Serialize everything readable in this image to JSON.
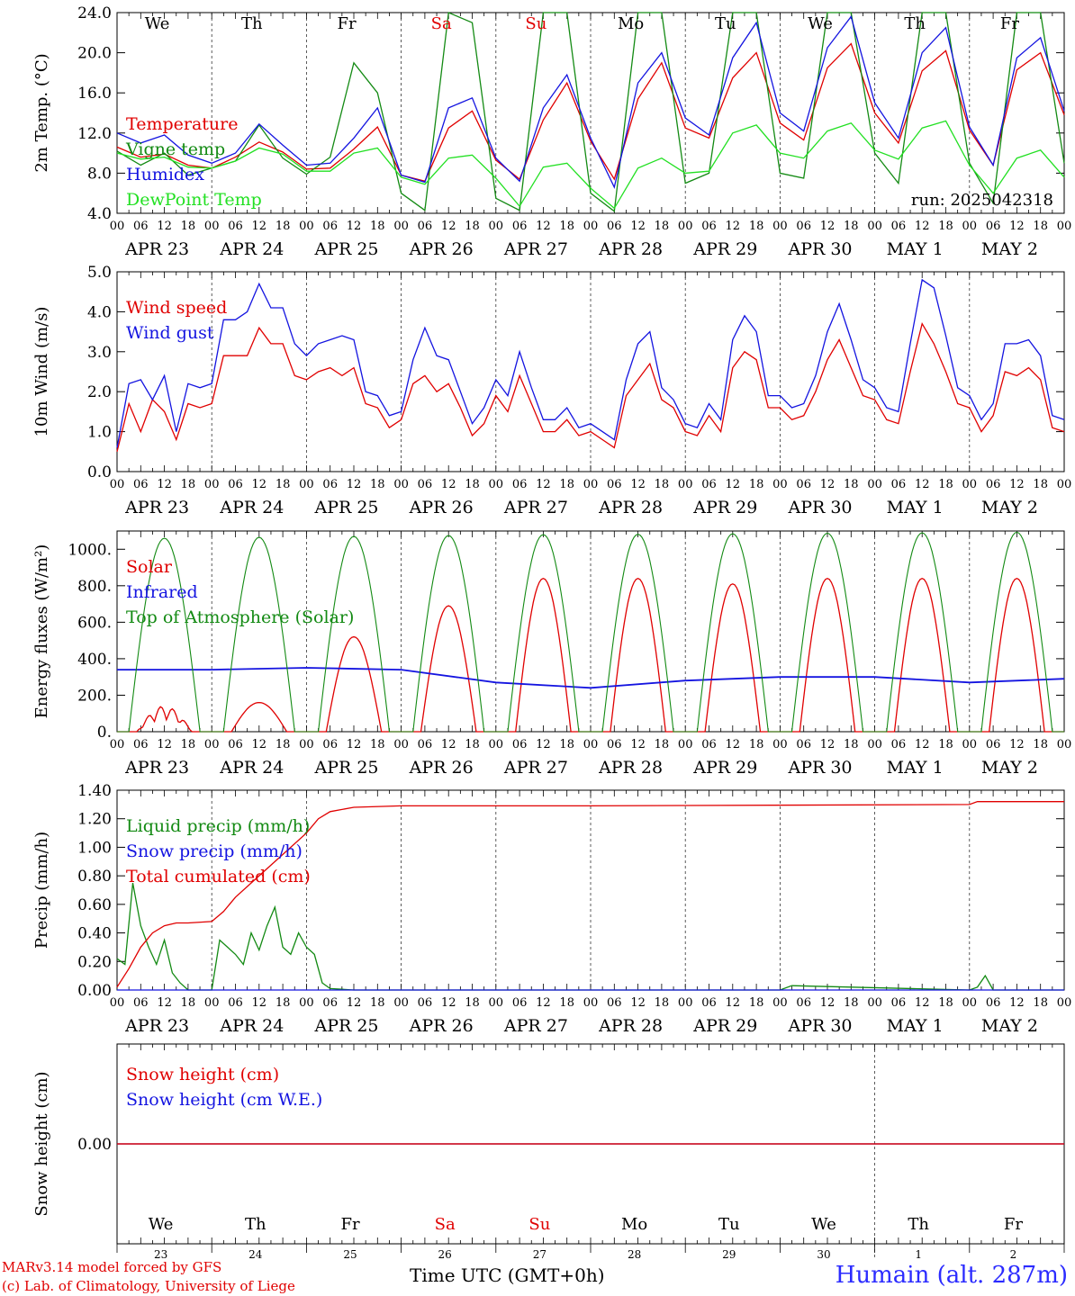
{
  "run_label": "run: 2025042318",
  "day_names": [
    "We",
    "Th",
    "Fr",
    "Sa",
    "Su",
    "Mo",
    "Tu",
    "We",
    "Th",
    "Fr"
  ],
  "day_name_colors": [
    "#000000",
    "#000000",
    "#000000",
    "#e00000",
    "#e00000",
    "#000000",
    "#000000",
    "#000000",
    "#000000",
    "#000000"
  ],
  "date_labels": [
    "APR 23",
    "APR 24",
    "APR 25",
    "APR 26",
    "APR 27",
    "APR 28",
    "APR 29",
    "APR 30",
    "MAY  1",
    "MAY  2"
  ],
  "hour_ticks": [
    "00",
    "06",
    "12",
    "18"
  ],
  "final_hour_tick": "00",
  "day_numbers": [
    "23",
    "24",
    "25",
    "26",
    "27",
    "28",
    "29",
    "30",
    "1",
    "2"
  ],
  "footer": {
    "model": "MARv3.14 model forced by GFS",
    "lab": "(c) Lab. of Climatology, University of Liege",
    "axis_title": "Time UTC (GMT+0h)",
    "station": "Humain (alt. 287m)"
  },
  "colors": {
    "red": "#e00000",
    "green": "#138a13",
    "blue": "#1414e0",
    "light_green": "#22e022"
  },
  "chart_data": [
    {
      "type": "line",
      "ylabel": "2m Temp. (°C)",
      "ylim": [
        4,
        24
      ],
      "yticks": [
        "4.0",
        "8.0",
        "12.0",
        "16.0",
        "20.0",
        "24.0"
      ],
      "x_unit": "hours since 2025-04-23 00 UTC",
      "grid": "dashed vertical lines at each day",
      "series": [
        {
          "name": "Temperature",
          "color": "red",
          "x": [
            0,
            6,
            12,
            18,
            24,
            30,
            36,
            42,
            48,
            54,
            60,
            66,
            72,
            78,
            84,
            90,
            96,
            102,
            108,
            114,
            120,
            126,
            132,
            138,
            144,
            150,
            156,
            162,
            168,
            174,
            180,
            186,
            192,
            198,
            204,
            210,
            216,
            222,
            228,
            234,
            240
          ],
          "values": [
            10.6,
            9.6,
            9.9,
            8.8,
            8.5,
            9.6,
            11.1,
            10.1,
            8.4,
            8.5,
            10.4,
            12.6,
            7.8,
            7.2,
            12.5,
            14.2,
            9.3,
            7.4,
            13.3,
            17.0,
            11.2,
            7.4,
            15.4,
            19.0,
            12.5,
            11.5,
            17.5,
            20.0,
            13.0,
            11.3,
            18.5,
            20.9,
            14.0,
            11.0,
            18.2,
            20.2,
            12.3,
            8.8,
            18.3,
            20.0,
            13.8
          ]
        },
        {
          "name": "Vigne temp",
          "color": "green",
          "x": [
            0,
            6,
            12,
            18,
            24,
            30,
            36,
            42,
            48,
            54,
            60,
            66,
            72,
            78,
            84,
            90,
            96,
            102,
            108,
            114,
            120,
            126,
            132,
            138,
            144,
            150,
            156,
            162,
            168,
            174,
            180,
            186,
            192,
            198,
            204,
            210,
            216,
            222,
            228,
            234,
            240
          ],
          "values": [
            10.2,
            8.8,
            10.0,
            7.8,
            8.5,
            9.2,
            12.8,
            9.5,
            7.9,
            9.6,
            19.0,
            16.0,
            6.0,
            4.3,
            24.0,
            23.0,
            5.5,
            4.3,
            24.0,
            24.0,
            6.0,
            4.2,
            24.0,
            24.0,
            7.0,
            8.0,
            24.0,
            24.0,
            8.0,
            7.5,
            24.0,
            24.0,
            10.0,
            7.0,
            24.0,
            24.0,
            9.0,
            5.0,
            24.0,
            24.0,
            9.0
          ]
        },
        {
          "name": "Humidex",
          "color": "blue",
          "x": [
            0,
            6,
            12,
            18,
            24,
            30,
            36,
            42,
            48,
            54,
            60,
            66,
            72,
            78,
            84,
            90,
            96,
            102,
            108,
            114,
            120,
            126,
            132,
            138,
            144,
            150,
            156,
            162,
            168,
            174,
            180,
            186,
            192,
            198,
            204,
            210,
            216,
            222,
            228,
            234,
            240
          ],
          "values": [
            12.0,
            11.0,
            11.8,
            9.8,
            9.0,
            10.0,
            12.9,
            10.8,
            8.8,
            9.0,
            11.5,
            14.5,
            7.8,
            7.1,
            14.5,
            15.5,
            9.5,
            7.2,
            14.5,
            17.8,
            11.5,
            6.6,
            17.0,
            20.0,
            13.5,
            11.8,
            19.5,
            23.0,
            14.0,
            12.2,
            20.5,
            23.6,
            15.0,
            11.5,
            20.0,
            22.5,
            12.6,
            8.8,
            19.5,
            21.5,
            14.2
          ]
        },
        {
          "name": "DewPoint Temp",
          "color": "light_green",
          "x": [
            0,
            6,
            12,
            18,
            24,
            30,
            36,
            42,
            48,
            54,
            60,
            66,
            72,
            78,
            84,
            90,
            96,
            102,
            108,
            114,
            120,
            126,
            132,
            138,
            144,
            150,
            156,
            162,
            168,
            174,
            180,
            186,
            192,
            198,
            204,
            210,
            216,
            222,
            228,
            234,
            240
          ],
          "values": [
            10.0,
            9.4,
            9.6,
            8.6,
            8.5,
            9.2,
            10.5,
            9.9,
            8.2,
            8.2,
            10.0,
            10.5,
            7.6,
            6.9,
            9.5,
            9.8,
            7.5,
            4.7,
            8.6,
            9.0,
            6.5,
            4.5,
            8.5,
            9.5,
            8.0,
            8.2,
            12.0,
            12.8,
            10.0,
            9.5,
            12.2,
            13.0,
            10.3,
            9.4,
            12.5,
            13.2,
            8.8,
            6.0,
            9.5,
            10.3,
            7.6
          ]
        }
      ]
    },
    {
      "type": "line",
      "ylabel": "10m Wind (m/s)",
      "ylim": [
        0,
        5
      ],
      "yticks": [
        "0.0",
        "1.0",
        "2.0",
        "3.0",
        "4.0",
        "5.0"
      ],
      "series": [
        {
          "name": "Wind speed",
          "color": "red",
          "x": [
            0,
            3,
            6,
            9,
            12,
            15,
            18,
            21,
            24,
            27,
            30,
            33,
            36,
            39,
            42,
            45,
            48,
            51,
            54,
            57,
            60,
            63,
            66,
            69,
            72,
            75,
            78,
            81,
            84,
            87,
            90,
            93,
            96,
            99,
            102,
            105,
            108,
            111,
            114,
            117,
            120,
            123,
            126,
            129,
            132,
            135,
            138,
            141,
            144,
            147,
            150,
            153,
            156,
            159,
            162,
            165,
            168,
            171,
            174,
            177,
            180,
            183,
            186,
            189,
            192,
            195,
            198,
            201,
            204,
            207,
            210,
            213,
            216,
            219,
            222,
            225,
            228,
            231,
            234,
            237,
            240
          ],
          "values": [
            0.5,
            1.7,
            1.0,
            1.8,
            1.5,
            0.8,
            1.7,
            1.6,
            1.7,
            2.9,
            2.9,
            2.9,
            3.6,
            3.2,
            3.2,
            2.4,
            2.3,
            2.5,
            2.6,
            2.4,
            2.6,
            1.7,
            1.6,
            1.1,
            1.3,
            2.2,
            2.4,
            2.0,
            2.2,
            1.6,
            0.9,
            1.2,
            1.9,
            1.5,
            2.4,
            1.7,
            1.0,
            1.0,
            1.3,
            0.9,
            1.0,
            0.8,
            0.6,
            1.9,
            2.3,
            2.7,
            1.8,
            1.6,
            1.0,
            0.9,
            1.4,
            1.0,
            2.6,
            3.0,
            2.8,
            1.6,
            1.6,
            1.3,
            1.4,
            2.0,
            2.8,
            3.3,
            2.6,
            1.9,
            1.8,
            1.3,
            1.2,
            2.5,
            3.7,
            3.2,
            2.5,
            1.7,
            1.6,
            1.0,
            1.4,
            2.5,
            2.4,
            2.6,
            2.3,
            1.1,
            1.0
          ]
        },
        {
          "name": "Wind gust",
          "color": "blue",
          "x": [
            0,
            3,
            6,
            9,
            12,
            15,
            18,
            21,
            24,
            27,
            30,
            33,
            36,
            39,
            42,
            45,
            48,
            51,
            54,
            57,
            60,
            63,
            66,
            69,
            72,
            75,
            78,
            81,
            84,
            87,
            90,
            93,
            96,
            99,
            102,
            105,
            108,
            111,
            114,
            117,
            120,
            123,
            126,
            129,
            132,
            135,
            138,
            141,
            144,
            147,
            150,
            153,
            156,
            159,
            162,
            165,
            168,
            171,
            174,
            177,
            180,
            183,
            186,
            189,
            192,
            195,
            198,
            201,
            204,
            207,
            210,
            213,
            216,
            219,
            222,
            225,
            228,
            231,
            234,
            237,
            240
          ],
          "values": [
            0.6,
            2.2,
            2.3,
            1.8,
            2.4,
            1.0,
            2.2,
            2.1,
            2.2,
            3.8,
            3.8,
            4.0,
            4.7,
            4.1,
            4.1,
            3.2,
            2.9,
            3.2,
            3.3,
            3.4,
            3.3,
            2.0,
            1.9,
            1.4,
            1.5,
            2.8,
            3.6,
            2.9,
            2.8,
            2.0,
            1.2,
            1.6,
            2.3,
            1.9,
            3.0,
            2.1,
            1.3,
            1.3,
            1.6,
            1.1,
            1.2,
            1.0,
            0.8,
            2.3,
            3.2,
            3.5,
            2.1,
            1.8,
            1.2,
            1.1,
            1.7,
            1.3,
            3.3,
            3.9,
            3.5,
            1.9,
            1.9,
            1.6,
            1.7,
            2.4,
            3.5,
            4.2,
            3.3,
            2.3,
            2.1,
            1.6,
            1.5,
            3.2,
            4.8,
            4.6,
            3.4,
            2.1,
            1.9,
            1.3,
            1.7,
            3.2,
            3.2,
            3.3,
            2.9,
            1.4,
            1.3
          ]
        }
      ]
    },
    {
      "type": "line",
      "ylabel": "Energy fluxes (W/m²)",
      "ylim": [
        0,
        1100
      ],
      "yticks": [
        "0.",
        "200.",
        "400.",
        "600.",
        "800.",
        "1000."
      ],
      "series": [
        {
          "name": "Solar",
          "color": "red",
          "peaks": [
            140,
            160,
            520,
            690,
            840,
            840,
            810,
            840,
            840,
            840
          ],
          "x": [
            0,
            6,
            8,
            10,
            12,
            14,
            16,
            18,
            20,
            24
          ],
          "values_day1": [
            0,
            0,
            100,
            60,
            130,
            80,
            140,
            0,
            0,
            0
          ]
        },
        {
          "name": "Infrared",
          "color": "blue",
          "x": [
            0,
            24,
            48,
            72,
            96,
            120,
            144,
            168,
            192,
            216,
            240
          ],
          "values": [
            340,
            340,
            350,
            340,
            270,
            240,
            280,
            300,
            300,
            270,
            290
          ]
        },
        {
          "name": "Top of Atmosphere (Solar)",
          "color": "green",
          "peaks": [
            1060,
            1065,
            1070,
            1075,
            1080,
            1082,
            1085,
            1088,
            1090,
            1093
          ]
        }
      ]
    },
    {
      "type": "line",
      "ylabel": "Precip (mm/h)",
      "ylim": [
        0,
        1.4
      ],
      "yticks": [
        "0.00",
        "0.20",
        "0.40",
        "0.60",
        "0.80",
        "1.00",
        "1.20",
        "1.40"
      ],
      "series": [
        {
          "name": "Liquid precip (mm/h)",
          "color": "green",
          "x": [
            0,
            2,
            4,
            6,
            8,
            10,
            12,
            14,
            16,
            18,
            24,
            26,
            28,
            30,
            32,
            34,
            36,
            38,
            40,
            42,
            44,
            46,
            48,
            50,
            52,
            54,
            60,
            168,
            171,
            216,
            218,
            220,
            222,
            240
          ],
          "values": [
            0.22,
            0.18,
            0.75,
            0.45,
            0.3,
            0.18,
            0.35,
            0.12,
            0.05,
            0.0,
            0.0,
            0.35,
            0.3,
            0.25,
            0.18,
            0.4,
            0.28,
            0.45,
            0.58,
            0.3,
            0.25,
            0.4,
            0.3,
            0.25,
            0.05,
            0.01,
            0.0,
            0.0,
            0.03,
            0.0,
            0.02,
            0.1,
            0.0,
            0.0
          ]
        },
        {
          "name": "Snow precip (mm/h)",
          "color": "blue",
          "x": [
            0,
            240
          ],
          "values": [
            0,
            0
          ]
        },
        {
          "name": "Total cumulated (cm)",
          "color": "red",
          "x": [
            0,
            3,
            6,
            9,
            12,
            15,
            18,
            24,
            27,
            30,
            36,
            42,
            48,
            51,
            54,
            60,
            72,
            120,
            216,
            218,
            240
          ],
          "values": [
            0.02,
            0.15,
            0.3,
            0.4,
            0.45,
            0.47,
            0.47,
            0.48,
            0.55,
            0.65,
            0.8,
            0.95,
            1.1,
            1.2,
            1.25,
            1.28,
            1.29,
            1.29,
            1.3,
            1.32,
            1.32
          ]
        }
      ]
    },
    {
      "type": "line",
      "ylabel": "Snow height (cm)",
      "yticks": [
        "0.00"
      ],
      "series": [
        {
          "name": "Snow height (cm)",
          "color": "red",
          "x": [
            0,
            240
          ],
          "values": [
            0,
            0
          ]
        },
        {
          "name": "Snow height (cm W.E.)",
          "color": "blue",
          "x": [
            0,
            240
          ],
          "values": [
            0,
            0
          ]
        }
      ]
    }
  ]
}
